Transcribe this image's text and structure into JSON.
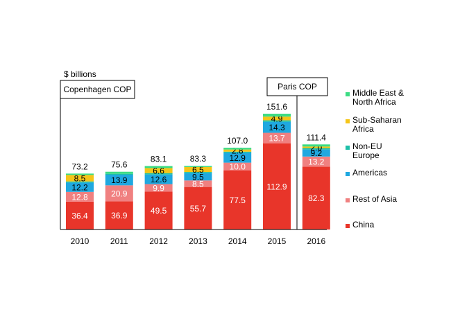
{
  "chart_data": {
    "type": "bar",
    "stacked": true,
    "title": "",
    "ylabel": "$ billions",
    "xlabel": "",
    "categories": [
      "2010",
      "2011",
      "2012",
      "2013",
      "2014",
      "2015",
      "2016"
    ],
    "totals": [
      "73.2",
      "75.6",
      "83.1",
      "83.3",
      "107.0",
      "151.6",
      "111.4"
    ],
    "ylim": [
      0,
      160
    ],
    "series": [
      {
        "name": "China",
        "color": "#e8352a",
        "label_color": "#ffffff",
        "values": [
          36.4,
          36.9,
          49.5,
          55.7,
          77.5,
          112.9,
          82.3
        ],
        "labels": [
          "36.4",
          "36.9",
          "49.5",
          "55.7",
          "77.5",
          "112.9",
          "82.3"
        ]
      },
      {
        "name": "Rest of Asia",
        "color": "#f08080",
        "label_color": "#ffffff",
        "values": [
          12.8,
          20.9,
          9.9,
          8.5,
          10.0,
          13.7,
          13.2
        ],
        "labels": [
          "12.8",
          "20.9",
          "9.9",
          "8.5",
          "10.0",
          "13.7",
          "13.2"
        ]
      },
      {
        "name": "Americas",
        "color": "#1fa8e0",
        "label_color": "#000000",
        "values": [
          12.2,
          13.9,
          12.6,
          9.5,
          12.9,
          14.3,
          9.2
        ],
        "labels": [
          "12.2",
          "13.9",
          "12.6",
          "9.5",
          "12.9",
          "14.3",
          "9.2"
        ]
      },
      {
        "name": "Non-EU Europe",
        "color": "#1dbfa8",
        "label_color": "#000000",
        "values": [
          1.5,
          1.2,
          1.8,
          1.6,
          1.5,
          2.0,
          1.9
        ],
        "labels": [
          "",
          "",
          "",
          "",
          "",
          "",
          ""
        ]
      },
      {
        "name": "Sub-Saharan Africa",
        "color": "#f5c518",
        "label_color": "#000000",
        "values": [
          8.5,
          0,
          6.6,
          6.5,
          2.8,
          4.9,
          2.0
        ],
        "labels": [
          "8.5",
          "",
          "6.6",
          "6.5",
          "2.8",
          "4.9",
          "2.0"
        ]
      },
      {
        "name": "Middle East & North Africa",
        "color": "#3ddc84",
        "label_color": "#000000",
        "values": [
          1.8,
          2.7,
          2.7,
          1.5,
          2.3,
          3.8,
          2.8
        ],
        "labels": [
          "",
          "",
          "",
          "",
          "",
          "",
          ""
        ]
      }
    ],
    "legend": [
      {
        "lines": [
          "Middle East &",
          "North Africa"
        ],
        "color": "#3ddc84"
      },
      {
        "lines": [
          "Sub-Saharan",
          "Africa"
        ],
        "color": "#f5c518"
      },
      {
        "lines": [
          "Non-EU",
          "Europe"
        ],
        "color": "#1dbfa8"
      },
      {
        "lines": [
          "Americas"
        ],
        "color": "#1fa8e0"
      },
      {
        "lines": [
          "Rest of Asia"
        ],
        "color": "#f08080"
      },
      {
        "lines": [
          "China"
        ],
        "color": "#e8352a"
      }
    ],
    "annotations": [
      {
        "text": "Copenhagen COP",
        "category": "2010"
      },
      {
        "text": "Paris COP",
        "category": "2015"
      }
    ]
  }
}
